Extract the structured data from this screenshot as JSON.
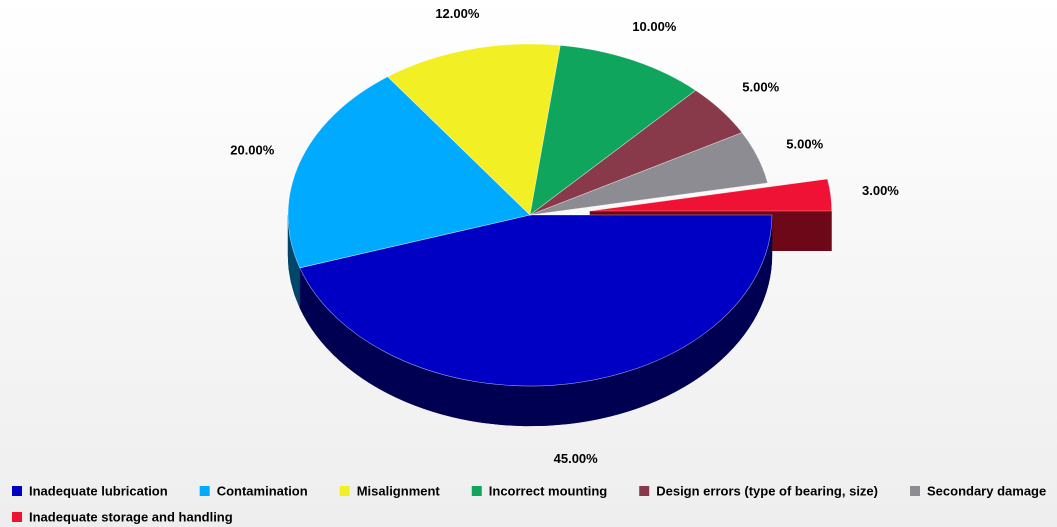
{
  "chart_data": {
    "type": "pie",
    "categories": [
      "Inadequate lubrication",
      "Contamination",
      "Misalignment",
      "Incorrect mounting",
      "Design errors (type of bearing, size)",
      "Secondary damage",
      "Inadequate storage and handling"
    ],
    "values": [
      45,
      20,
      12,
      10,
      5,
      5,
      3
    ],
    "value_labels": [
      "45.00%",
      "20.00%",
      "12.00%",
      "10.00%",
      "5.00%",
      "5.00%",
      "3.00%"
    ],
    "colors": [
      "#0000c4",
      "#00aaff",
      "#f2f024",
      "#0fa55c",
      "#883a4a",
      "#8c8c92",
      "#f01234"
    ],
    "exploded": [
      false,
      false,
      false,
      false,
      false,
      false,
      true
    ],
    "legend": "bottom"
  }
}
